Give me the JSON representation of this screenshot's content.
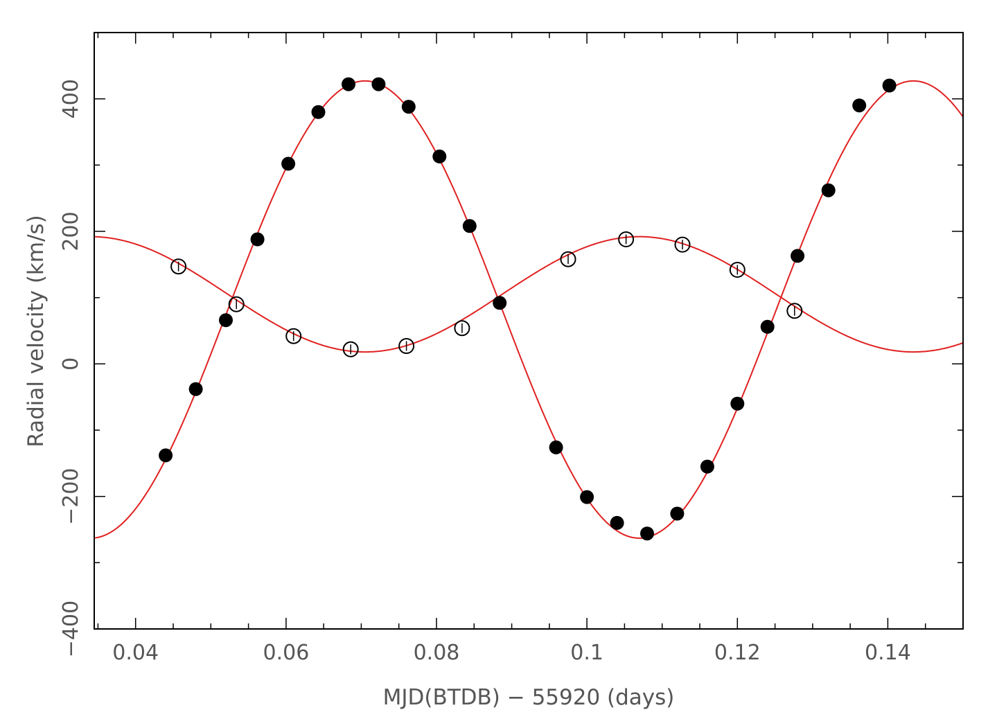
{
  "chart_data": {
    "type": "scatter",
    "xlabel": "MJD(BTDB) − 55920 (days)",
    "ylabel": "Radial velocity (km/s)",
    "xlim": [
      0.0345,
      0.15
    ],
    "ylim": [
      -400,
      500
    ],
    "x_ticks": [
      0.04,
      0.06,
      0.08,
      0.1,
      0.12,
      0.14
    ],
    "x_tick_labels": [
      "0.04",
      "0.06",
      "0.08",
      "0.1",
      "0.12",
      "0.14"
    ],
    "y_ticks": [
      -400,
      -200,
      0,
      200,
      400
    ],
    "y_tick_labels": [
      "−400",
      "−200",
      "0",
      "200",
      "400"
    ],
    "grid": false,
    "series": [
      {
        "marker": "filled-circle",
        "color": "#000000",
        "points": [
          [
            0.044,
            -138
          ],
          [
            0.048,
            -38
          ],
          [
            0.052,
            66
          ],
          [
            0.0562,
            188
          ],
          [
            0.0603,
            302
          ],
          [
            0.0643,
            380
          ],
          [
            0.0683,
            422
          ],
          [
            0.0723,
            422
          ],
          [
            0.0763,
            388
          ],
          [
            0.0804,
            313
          ],
          [
            0.0844,
            208
          ],
          [
            0.0884,
            92
          ],
          [
            0.0959,
            -126
          ],
          [
            0.1,
            -201
          ],
          [
            0.104,
            -240
          ],
          [
            0.108,
            -256
          ],
          [
            0.112,
            -226
          ],
          [
            0.116,
            -155
          ],
          [
            0.12,
            -60
          ],
          [
            0.124,
            56
          ],
          [
            0.128,
            163
          ],
          [
            0.1321,
            262
          ],
          [
            0.1362,
            390
          ],
          [
            0.1402,
            420
          ]
        ]
      },
      {
        "marker": "open-circle",
        "color": "#000000",
        "points": [
          [
            0.0457,
            147
          ],
          [
            0.0534,
            90
          ],
          [
            0.061,
            42
          ],
          [
            0.0686,
            22
          ],
          [
            0.076,
            27
          ],
          [
            0.0834,
            54
          ],
          [
            0.0975,
            158
          ],
          [
            0.1052,
            188
          ],
          [
            0.1127,
            180
          ],
          [
            0.12,
            142
          ],
          [
            0.1276,
            80
          ]
        ]
      }
    ],
    "fits": [
      {
        "color": "#e02020",
        "gamma": 82,
        "amplitude": 345,
        "period": 0.0729,
        "t_max": 0.0705
      },
      {
        "color": "#e02020",
        "gamma": 105,
        "amplitude": 87,
        "period": 0.0729,
        "t_max": 0.10695
      }
    ]
  }
}
